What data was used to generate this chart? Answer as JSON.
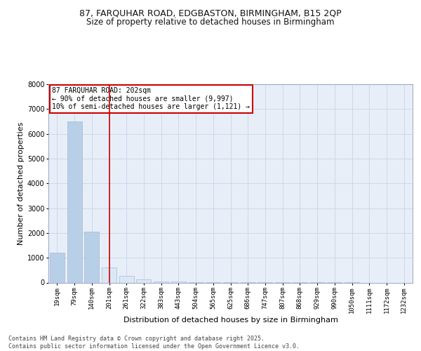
{
  "title_line1": "87, FARQUHAR ROAD, EDGBASTON, BIRMINGHAM, B15 2QP",
  "title_line2": "Size of property relative to detached houses in Birmingham",
  "xlabel": "Distribution of detached houses by size in Birmingham",
  "ylabel": "Number of detached properties",
  "categories": [
    "19sqm",
    "79sqm",
    "140sqm",
    "201sqm",
    "261sqm",
    "322sqm",
    "383sqm",
    "443sqm",
    "504sqm",
    "565sqm",
    "625sqm",
    "686sqm",
    "747sqm",
    "807sqm",
    "868sqm",
    "929sqm",
    "990sqm",
    "1050sqm",
    "1111sqm",
    "1172sqm",
    "1232sqm"
  ],
  "values": [
    1200,
    6500,
    2050,
    600,
    270,
    130,
    55,
    30,
    25,
    20,
    10,
    5,
    3,
    2,
    2,
    1,
    1,
    1,
    0,
    0,
    0
  ],
  "bar_color_left": "#b8cfe8",
  "bar_color_right": "#d8e8f5",
  "vline_index": 3,
  "annotation_text": "87 FARQUHAR ROAD: 202sqm\n← 90% of detached houses are smaller (9,997)\n10% of semi-detached houses are larger (1,121) →",
  "annotation_box_color": "#ffffff",
  "annotation_border_color": "#cc0000",
  "vline_color": "#cc0000",
  "ylim": [
    0,
    8000
  ],
  "yticks": [
    0,
    1000,
    2000,
    3000,
    4000,
    5000,
    6000,
    7000,
    8000
  ],
  "grid_color": "#ccd8ea",
  "background_color": "#ffffff",
  "plot_bg_color": "#e8eef8",
  "title_fontsize": 9,
  "subtitle_fontsize": 8.5,
  "axis_label_fontsize": 8,
  "tick_fontsize": 6.5,
  "footer_text": "Contains HM Land Registry data © Crown copyright and database right 2025.\nContains public sector information licensed under the Open Government Licence v3.0."
}
